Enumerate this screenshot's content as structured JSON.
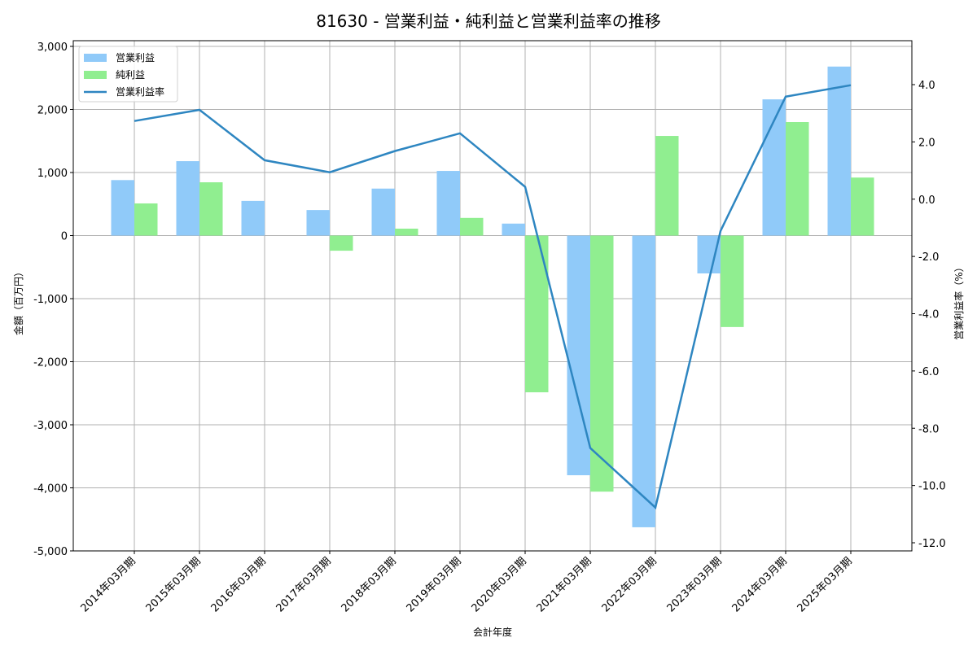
{
  "chart_data": {
    "type": "bar",
    "title": "81630 - 営業利益・純利益と営業利益率の推移",
    "xlabel": "会計年度",
    "ylabel": "金額（百万円）",
    "ylabel_right": "営業利益率（%）",
    "ylim": [
      -5000,
      3000
    ],
    "ylim_right": [
      -12.3,
      5.3
    ],
    "yticks": [
      3000,
      2000,
      1000,
      0,
      -1000,
      -2000,
      -3000,
      -4000,
      -5000
    ],
    "yticks_labels": [
      "3,000",
      "2,000",
      "1,000",
      "0",
      "-1,000",
      "-2,000",
      "-3,000",
      "-4,000",
      "-5,000"
    ],
    "yticks_right": [
      4.0,
      2.0,
      0.0,
      -2.0,
      -4.0,
      -6.0,
      -8.0,
      -10.0,
      -12.0
    ],
    "yticks_right_labels": [
      "4.0",
      "2.0",
      "0.0",
      "-2.0",
      "-4.0",
      "-6.0",
      "-8.0",
      "-10.0",
      "-12.0"
    ],
    "grid": true,
    "legend_position": "upper left",
    "categories": [
      "2014年03月期",
      "2015年03月期",
      "2016年03月期",
      "2017年03月期",
      "2018年03月期",
      "2019年03月期",
      "2020年03月期",
      "2021年03月期",
      "2022年03月期",
      "2023年03月期",
      "2024年03月期",
      "2025年03月期"
    ],
    "series": [
      {
        "name": "営業利益",
        "kind": "bar",
        "axis": "left",
        "color": "#90CAF9",
        "values": [
          880,
          1180,
          550,
          405,
          745,
          1025,
          190,
          -3800,
          -4625,
          -600,
          2160,
          2680
        ]
      },
      {
        "name": "純利益",
        "kind": "bar",
        "axis": "left",
        "color": "#90EE90",
        "values": [
          510,
          845,
          0,
          -240,
          110,
          280,
          -2485,
          -4060,
          1580,
          -1450,
          1800,
          920
        ]
      },
      {
        "name": "営業利益率",
        "kind": "line",
        "axis": "right",
        "color": "#2E86C1",
        "values": [
          2.73,
          3.12,
          1.36,
          0.94,
          1.68,
          2.3,
          0.43,
          -8.69,
          -10.77,
          -1.11,
          3.58,
          3.98
        ]
      }
    ]
  }
}
